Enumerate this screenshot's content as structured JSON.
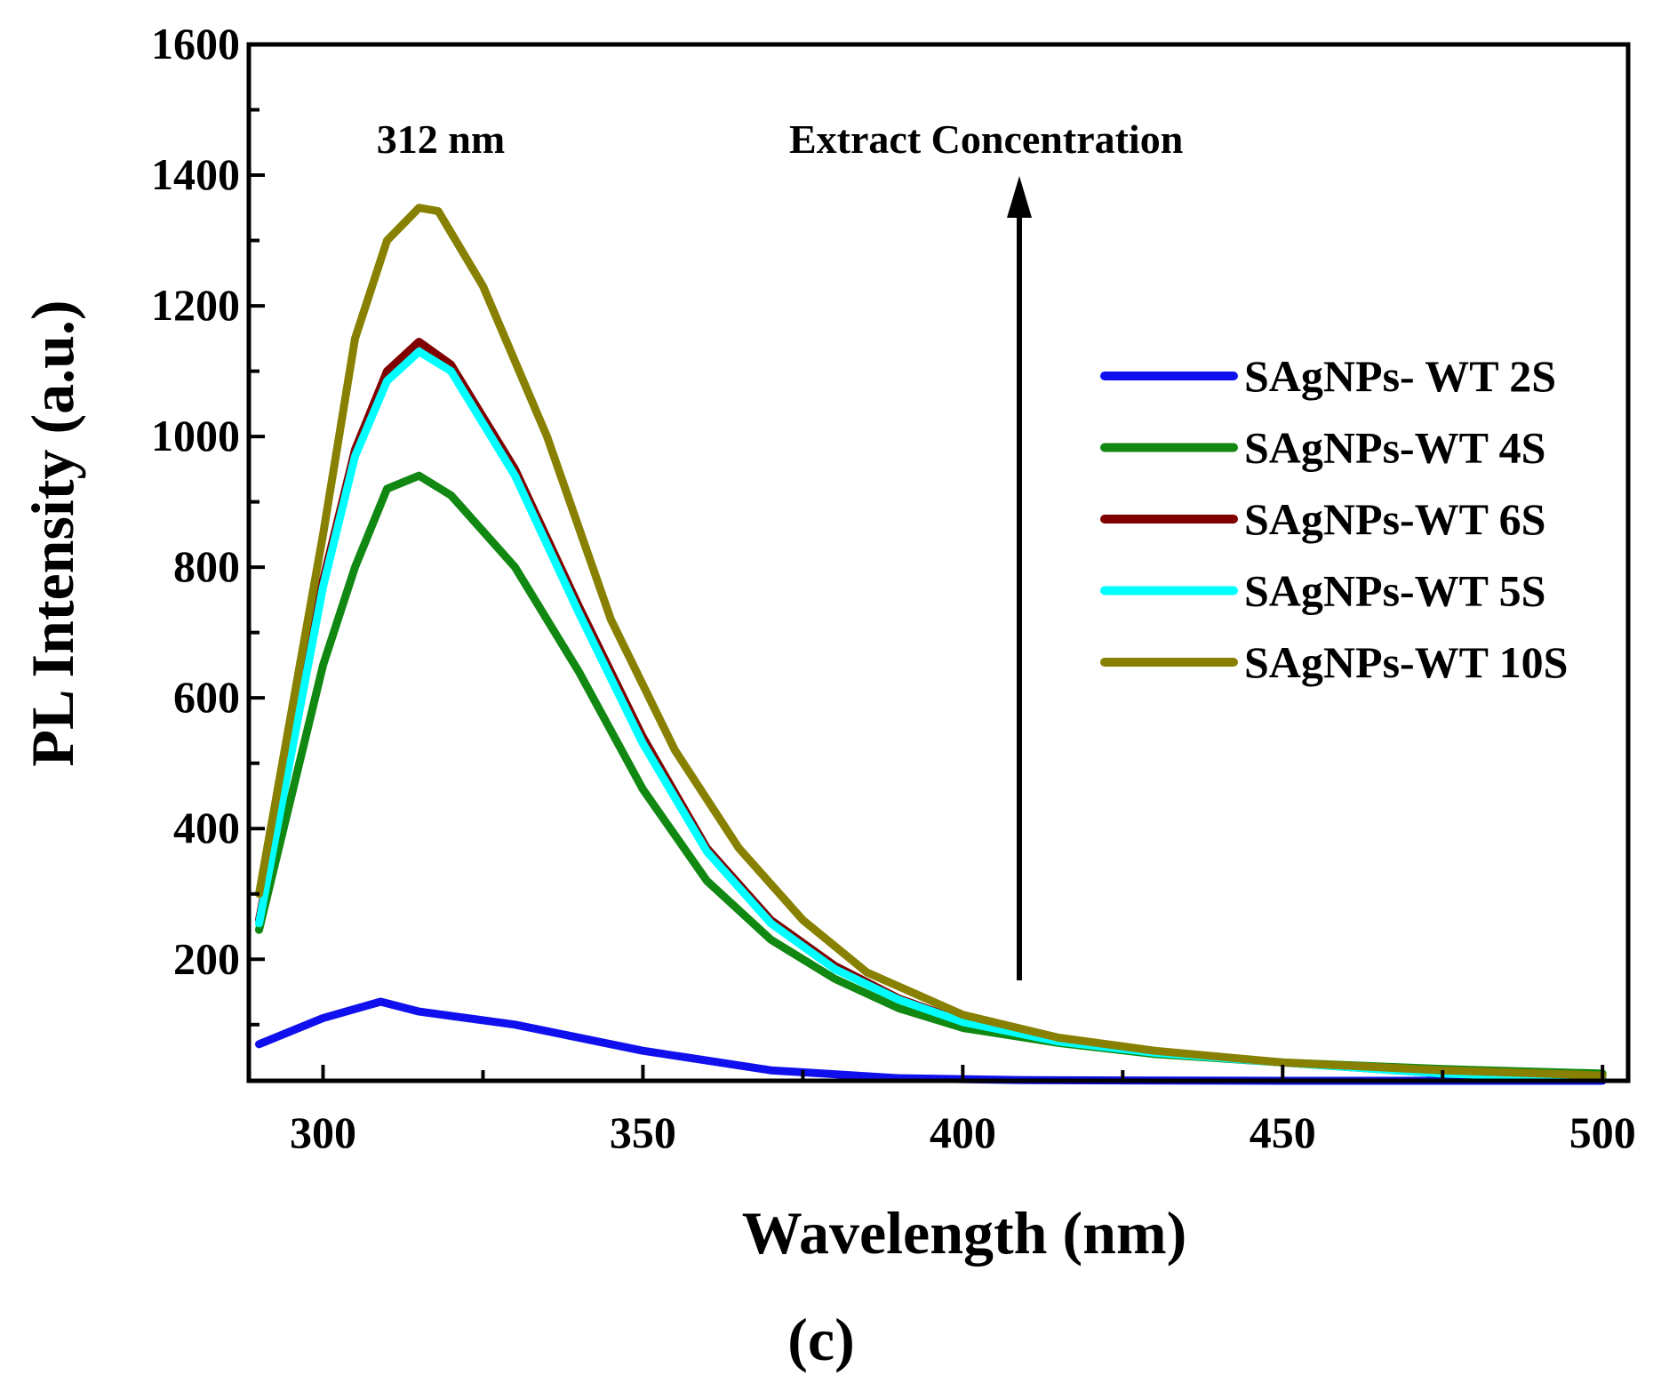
{
  "chart_data": {
    "type": "line",
    "title": "",
    "panel_label": "(c)",
    "xlabel": "Wavelength (nm)",
    "ylabel": "PL Intensity (a.u.)",
    "xlim": [
      288.4,
      504
    ],
    "ylim": [
      14,
      1600
    ],
    "xticks": [
      300,
      350,
      400,
      450,
      500
    ],
    "yticks": [
      200,
      400,
      600,
      800,
      1000,
      1200,
      1400,
      1600
    ],
    "grid": false,
    "legend_position": "right",
    "annotations": {
      "peak_label": "312 nm",
      "arrow_label": "Extract Concentration"
    },
    "series": [
      {
        "name": "SAgNPs- WT 2S",
        "color": "#1010ee",
        "x": [
          290,
          300,
          309,
          315,
          330,
          350,
          370,
          390,
          410,
          450,
          500
        ],
        "y": [
          70,
          110,
          135,
          120,
          100,
          60,
          30,
          18,
          15,
          14,
          14
        ]
      },
      {
        "name": "SAgNPs-WT 4S",
        "color": "#118811",
        "x": [
          290,
          300,
          305,
          310,
          315,
          320,
          330,
          340,
          350,
          360,
          370,
          380,
          390,
          400,
          415,
          430,
          450,
          475,
          500
        ],
        "y": [
          245,
          650,
          800,
          920,
          940,
          910,
          800,
          640,
          460,
          320,
          230,
          170,
          125,
          95,
          72,
          55,
          42,
          32,
          25
        ]
      },
      {
        "name": "SAgNPs-WT 6S",
        "color": "#800000",
        "x": [
          290,
          300,
          305,
          310,
          315,
          320,
          330,
          340,
          350,
          360,
          370,
          380,
          390,
          400,
          415,
          430,
          450,
          475,
          500
        ],
        "y": [
          260,
          780,
          980,
          1100,
          1145,
          1110,
          950,
          740,
          540,
          370,
          260,
          190,
          140,
          105,
          75,
          58,
          42,
          25,
          18
        ]
      },
      {
        "name": "SAgNPs-WT 5S",
        "color": "#00ffff",
        "x": [
          290,
          300,
          305,
          310,
          315,
          320,
          330,
          340,
          350,
          360,
          370,
          380,
          390,
          400,
          415,
          430,
          450,
          475,
          500
        ],
        "y": [
          255,
          770,
          970,
          1085,
          1130,
          1100,
          940,
          730,
          530,
          365,
          255,
          185,
          138,
          104,
          74,
          57,
          42,
          25,
          18
        ]
      },
      {
        "name": "SAgNPs-WT 10S",
        "color": "#888000",
        "x": [
          290,
          300,
          305,
          310,
          315,
          318,
          325,
          335,
          345,
          355,
          365,
          375,
          385,
          400,
          415,
          430,
          450,
          475,
          500
        ],
        "y": [
          300,
          850,
          1150,
          1300,
          1350,
          1345,
          1230,
          1000,
          720,
          520,
          370,
          260,
          180,
          115,
          80,
          60,
          42,
          30,
          22
        ]
      }
    ]
  }
}
